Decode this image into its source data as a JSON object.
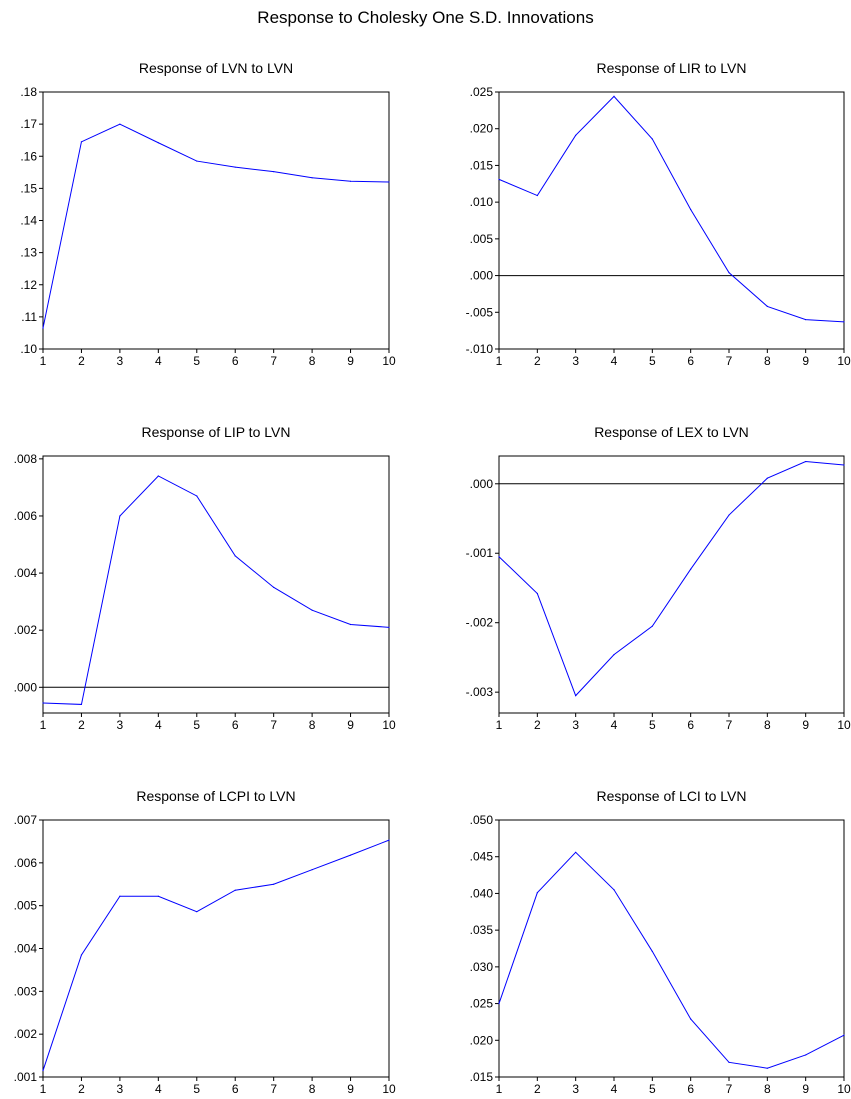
{
  "figure": {
    "title": "Response to Cholesky One S.D. Innovations"
  },
  "colors": {
    "response_line": "#0000ff",
    "zero_line": "#000000",
    "frame": "#000000"
  },
  "chart_data": [
    {
      "type": "line",
      "title": "Response of LVN to LVN",
      "x": [
        1,
        2,
        3,
        4,
        5,
        6,
        7,
        8,
        9,
        10
      ],
      "y_ticks": [
        ".10",
        ".11",
        ".12",
        ".13",
        ".14",
        ".15",
        ".16",
        ".17",
        ".18"
      ],
      "ylim": [
        0.1,
        0.18
      ],
      "zero_line": false,
      "series": [
        {
          "values": [
            0.1065,
            0.1645,
            0.17,
            0.1642,
            0.1585,
            0.1566,
            0.1552,
            0.1533,
            0.1522,
            0.152
          ]
        }
      ]
    },
    {
      "type": "line",
      "title": "Response of LIR to LVN",
      "x": [
        1,
        2,
        3,
        4,
        5,
        6,
        7,
        8,
        9,
        10
      ],
      "y_ticks": [
        "-.010",
        "-.005",
        ".000",
        ".005",
        ".010",
        ".015",
        ".020",
        ".025"
      ],
      "ylim": [
        -0.01,
        0.025
      ],
      "zero_line": true,
      "series": [
        {
          "values": [
            0.0131,
            0.0109,
            0.0191,
            0.0244,
            0.0186,
            0.009,
            0.0004,
            -0.0042,
            -0.006,
            -0.0063
          ]
        }
      ]
    },
    {
      "type": "line",
      "title": "Response of LIP to LVN",
      "x": [
        1,
        2,
        3,
        4,
        5,
        6,
        7,
        8,
        9,
        10
      ],
      "y_ticks": [
        ".000",
        ".002",
        ".004",
        ".006",
        ".008"
      ],
      "ylim": [
        -0.0009,
        0.0081
      ],
      "zero_line": true,
      "series": [
        {
          "values": [
            -0.00055,
            -0.0006,
            0.006,
            0.0074,
            0.0067,
            0.0046,
            0.0035,
            0.0027,
            0.0022,
            0.0021
          ]
        }
      ]
    },
    {
      "type": "line",
      "title": "Response of LEX to LVN",
      "x": [
        1,
        2,
        3,
        4,
        5,
        6,
        7,
        8,
        9,
        10
      ],
      "y_ticks": [
        "-.003",
        "-.002",
        "-.001",
        ".000"
      ],
      "ylim": [
        -0.0033,
        0.0004
      ],
      "zero_line": true,
      "series": [
        {
          "values": [
            -0.00105,
            -0.00158,
            -0.00305,
            -0.00246,
            -0.00205,
            -0.00123,
            -0.00045,
            8e-05,
            0.00032,
            0.00027
          ]
        }
      ]
    },
    {
      "type": "line",
      "title": "Response of LCPI to LVN",
      "x": [
        1,
        2,
        3,
        4,
        5,
        6,
        7,
        8,
        9,
        10
      ],
      "y_ticks": [
        ".001",
        ".002",
        ".003",
        ".004",
        ".005",
        ".006",
        ".007"
      ],
      "ylim": [
        0.001,
        0.007
      ],
      "zero_line": false,
      "series": [
        {
          "values": [
            0.00115,
            0.00385,
            0.00522,
            0.00522,
            0.00486,
            0.00536,
            0.0055,
            0.00584,
            0.00618,
            0.00653
          ]
        }
      ]
    },
    {
      "type": "line",
      "title": "Response of LCI to LVN",
      "x": [
        1,
        2,
        3,
        4,
        5,
        6,
        7,
        8,
        9,
        10
      ],
      "y_ticks": [
        ".015",
        ".020",
        ".025",
        ".030",
        ".035",
        ".040",
        ".045",
        ".050"
      ],
      "ylim": [
        0.015,
        0.05
      ],
      "zero_line": false,
      "series": [
        {
          "values": [
            0.025,
            0.0401,
            0.0456,
            0.0405,
            0.0321,
            0.0229,
            0.017,
            0.0162,
            0.018,
            0.0207
          ]
        }
      ]
    }
  ]
}
